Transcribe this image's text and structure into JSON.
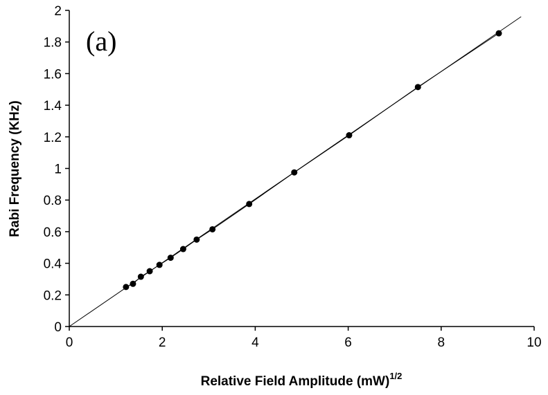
{
  "chart_data": {
    "type": "scatter",
    "panel_label": "(a)",
    "xlabel": "Relative Field Amplitude (mW)",
    "xlabel_superscript": "1/2",
    "ylabel": "Rabi Frequency (KHz)",
    "xlim": [
      0,
      10
    ],
    "ylim": [
      0,
      2
    ],
    "x_ticks": [
      "0",
      "2",
      "4",
      "6",
      "8",
      "10"
    ],
    "y_ticks": [
      "0",
      "0.2",
      "0.4",
      "0.6",
      "0.8",
      "1",
      "1.2",
      "1.4",
      "1.6",
      "1.8",
      "2"
    ],
    "grid": false,
    "series": [
      {
        "points": [
          {
            "x": 1.22,
            "y": 0.25
          },
          {
            "x": 1.37,
            "y": 0.27
          },
          {
            "x": 1.54,
            "y": 0.315
          },
          {
            "x": 1.73,
            "y": 0.35
          },
          {
            "x": 1.94,
            "y": 0.39
          },
          {
            "x": 2.18,
            "y": 0.435
          },
          {
            "x": 2.45,
            "y": 0.49
          },
          {
            "x": 2.74,
            "y": 0.55
          },
          {
            "x": 3.08,
            "y": 0.615
          },
          {
            "x": 3.87,
            "y": 0.775
          },
          {
            "x": 4.84,
            "y": 0.975
          },
          {
            "x": 6.02,
            "y": 1.21
          },
          {
            "x": 7.5,
            "y": 1.515
          },
          {
            "x": 9.24,
            "y": 1.855
          }
        ]
      }
    ],
    "fit_line": {
      "from": [
        0,
        0
      ],
      "to": [
        9.72,
        1.96
      ]
    }
  }
}
